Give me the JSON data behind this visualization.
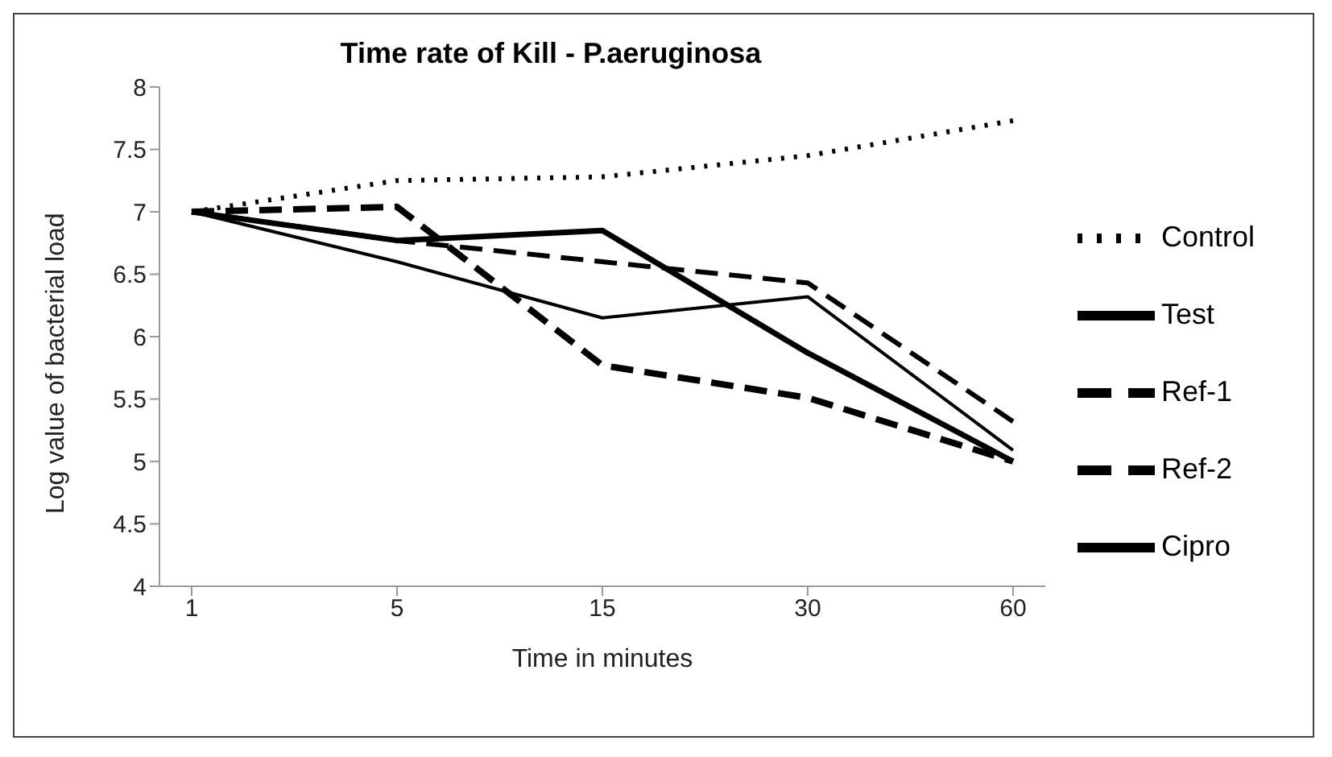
{
  "chart_data": {
    "type": "line",
    "title": "Time rate of Kill - P.aeruginosa",
    "xlabel": "Time in minutes",
    "ylabel": "Log value of bacterial load",
    "categories": [
      "1",
      "5",
      "15",
      "30",
      "60"
    ],
    "series": [
      {
        "name": "Control",
        "color": "#000000",
        "line_style": "dotted",
        "values": [
          7,
          7.25,
          7.28,
          7.45,
          7.73
        ]
      },
      {
        "name": "Test",
        "color": "#000000",
        "line_style": "solid",
        "values": [
          7,
          6.77,
          6.85,
          5.87,
          5.0
        ]
      },
      {
        "name": "Ref-1",
        "color": "#000000",
        "line_style": "dashed",
        "values": [
          7,
          7.04,
          5.77,
          5.51,
          5.0
        ]
      },
      {
        "name": "Ref-2",
        "color": "#000000",
        "line_style": "dashed",
        "values": [
          7,
          6.77,
          6.6,
          6.43,
          5.32
        ]
      },
      {
        "name": "Cipro",
        "color": "#000000",
        "line_style": "solid",
        "values": [
          7,
          6.6,
          6.15,
          6.32,
          5.09
        ]
      }
    ],
    "ylim": [
      4,
      8
    ],
    "yticks": [
      4,
      4.5,
      5,
      5.5,
      6,
      6.5,
      7,
      7.5,
      8
    ],
    "grid": false,
    "legend": "right",
    "marker": "none"
  }
}
